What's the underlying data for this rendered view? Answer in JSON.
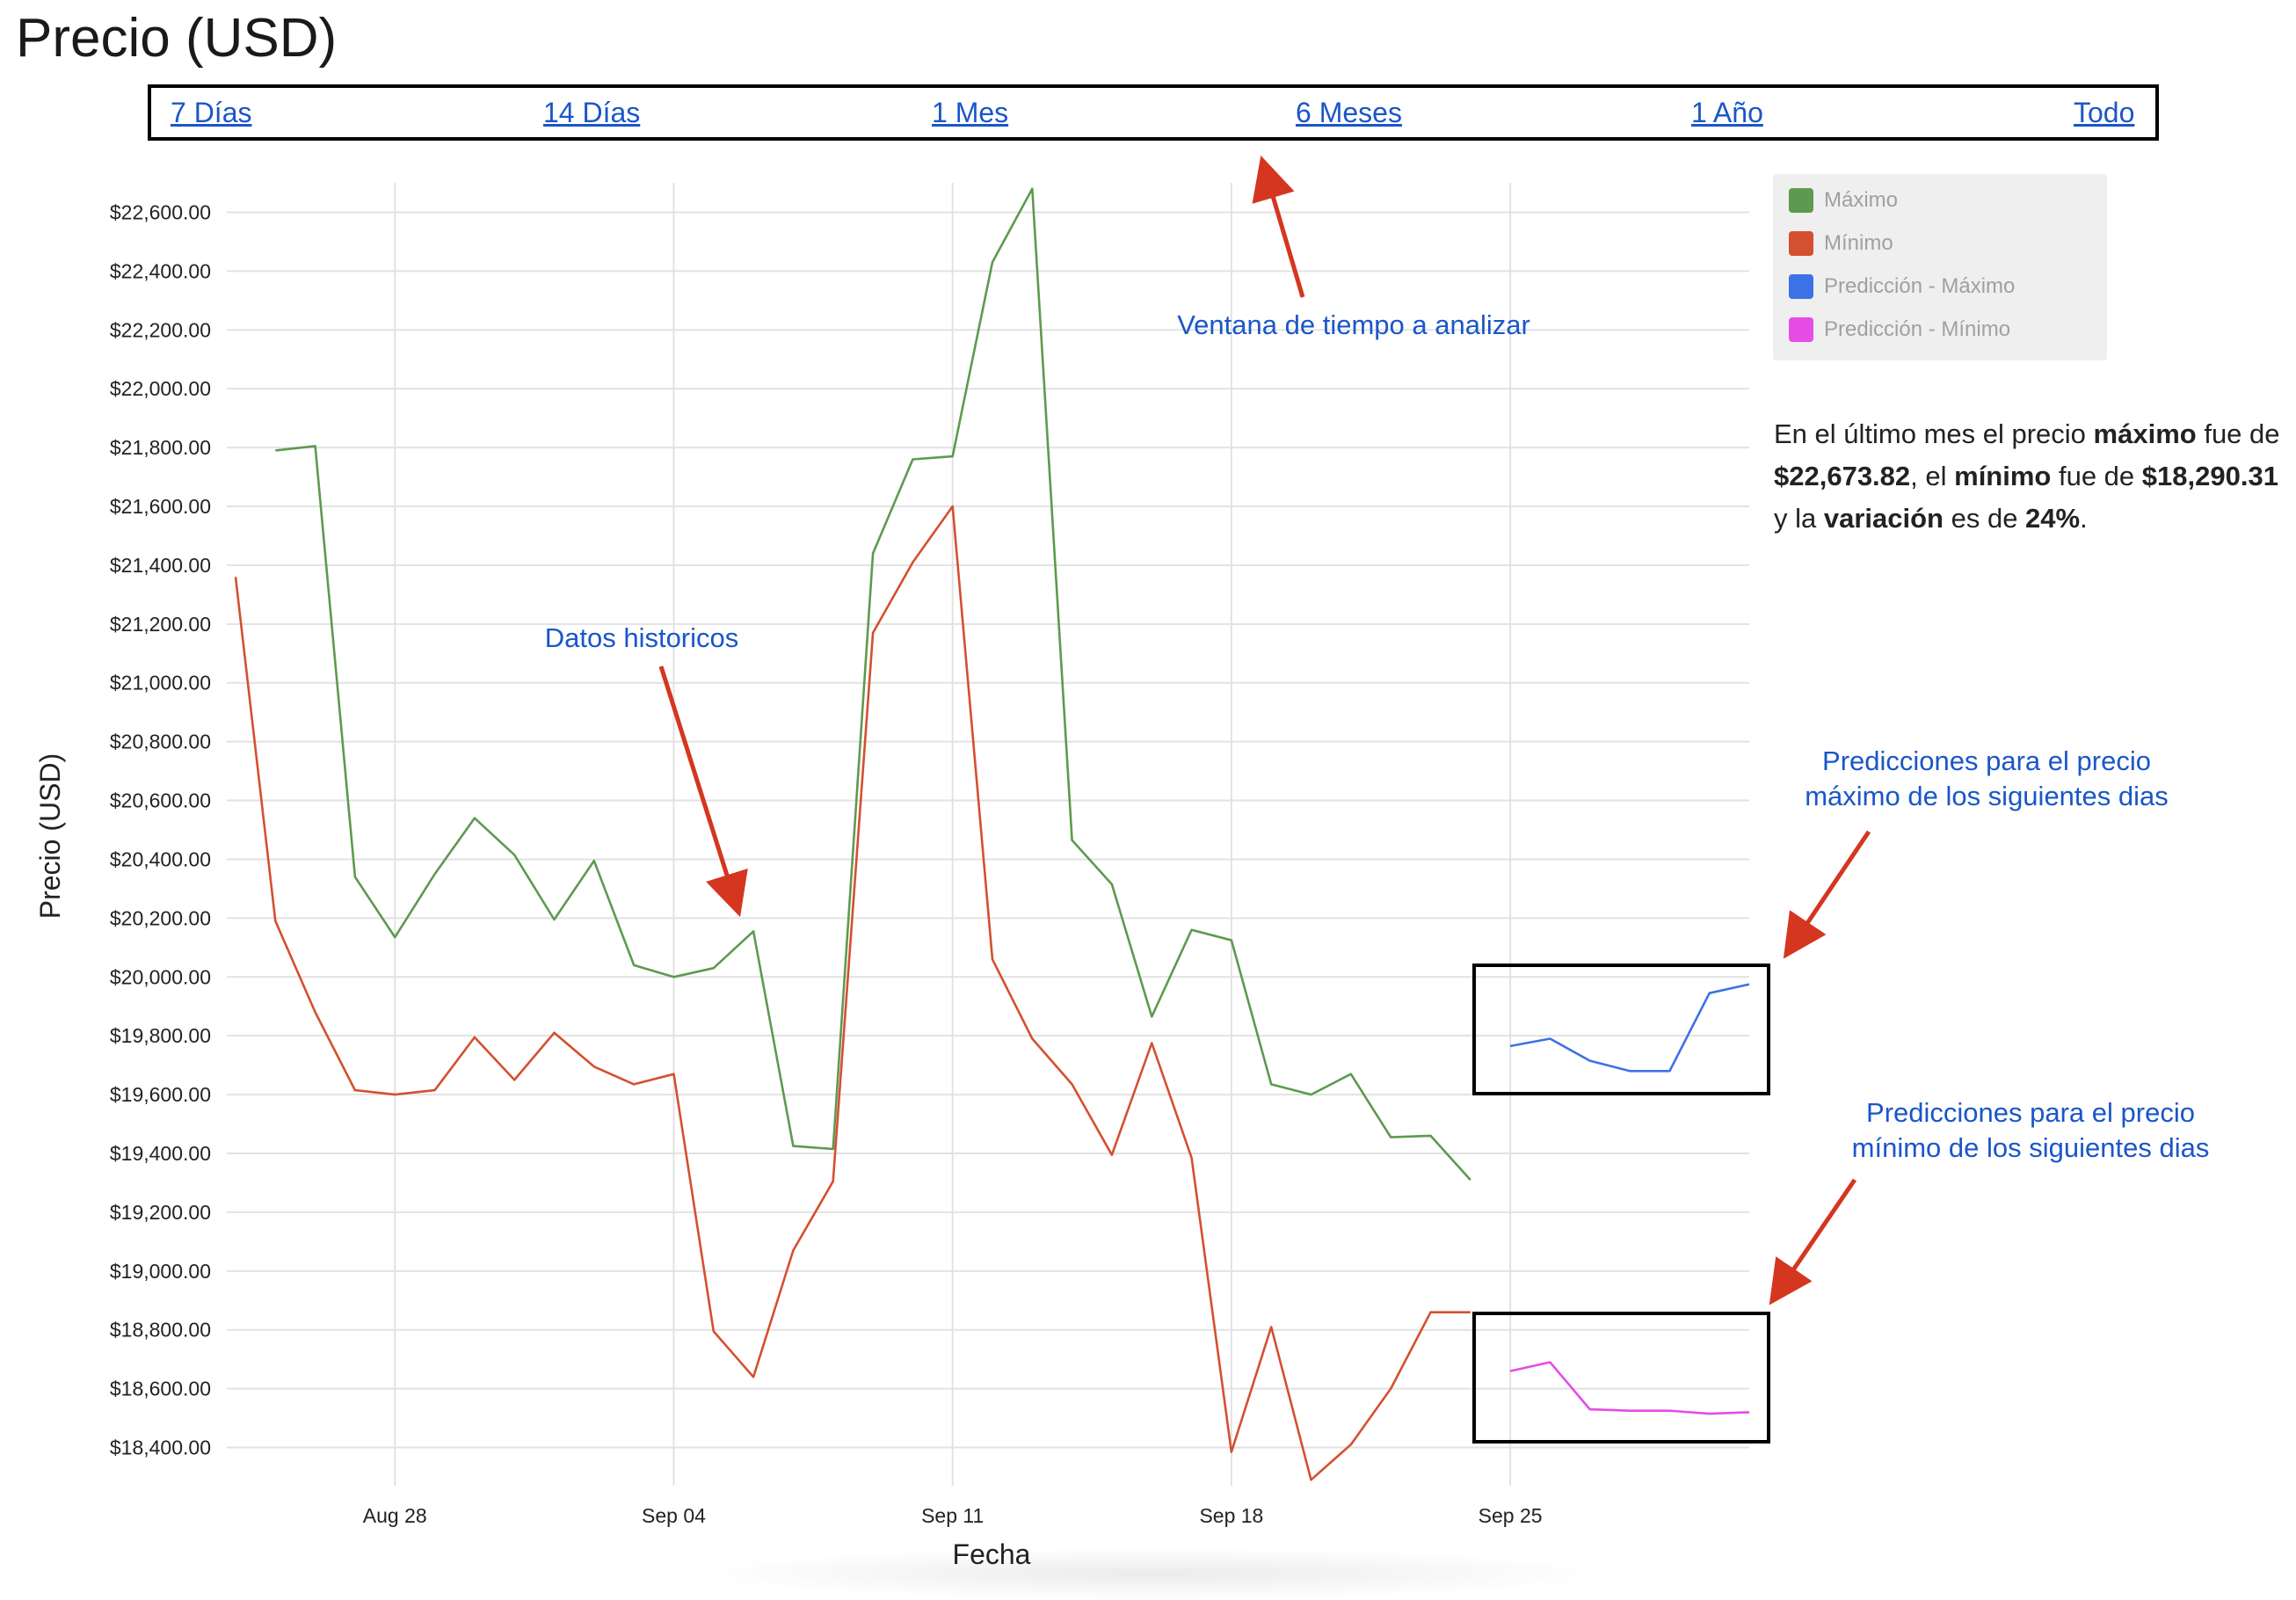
{
  "page": {
    "title": "Precio (USD)"
  },
  "range_selector": {
    "options": [
      "7 Días",
      "14 Días",
      "1 Mes",
      "6 Meses",
      "1 Año",
      "Todo"
    ]
  },
  "legend": [
    {
      "label": "Máximo",
      "color": "#5d9a4f"
    },
    {
      "label": "Mínimo",
      "color": "#d4502f"
    },
    {
      "label": "Predicción - Máximo",
      "color": "#3d72e6"
    },
    {
      "label": "Predicción - Mínimo",
      "color": "#e64ce6"
    }
  ],
  "summary": {
    "p1": "En el último mes el precio ",
    "b1": "máximo",
    "p2": " fue de ",
    "b2": "$22,673.82",
    "p3": ", el ",
    "b3": "mínimo",
    "p4": " fue de ",
    "b4": "$18,290.31",
    "p5": " y la ",
    "b5": "variación",
    "p6": " es de ",
    "b6": "24%",
    "p7": "."
  },
  "annotations": {
    "time_window": "Ventana de tiempo a analizar",
    "historical": "Datos historicos",
    "pred_max_line1": "Predicciones para el precio",
    "pred_max_line2": "máximo de los siguientes dias",
    "pred_min_line1": "Predicciones para el precio",
    "pred_min_line2": "mínimo de los siguientes dias"
  },
  "chart_data": {
    "type": "line",
    "xlabel": "Fecha",
    "ylabel": "Precio (USD)",
    "x_ticks": [
      "Aug 28",
      "Sep 04",
      "Sep 11",
      "Sep 18",
      "Sep 25"
    ],
    "x_tick_dates": [
      "2022-08-28",
      "2022-09-04",
      "2022-09-11",
      "2022-09-18",
      "2022-09-25"
    ],
    "y_ticks": [
      "$18,400.00",
      "$18,600.00",
      "$18,800.00",
      "$19,000.00",
      "$19,200.00",
      "$19,400.00",
      "$19,600.00",
      "$19,800.00",
      "$20,000.00",
      "$20,200.00",
      "$20,400.00",
      "$20,600.00",
      "$20,800.00",
      "$21,000.00",
      "$21,200.00",
      "$21,400.00",
      "$21,600.00",
      "$21,800.00",
      "$22,000.00",
      "$22,200.00",
      "$22,400.00",
      "$22,600.00"
    ],
    "ylim": [
      18300,
      22700
    ],
    "xlim": [
      "2022-08-24",
      "2022-10-01"
    ],
    "grid": true,
    "legend_position": "top-right",
    "series": [
      {
        "name": "Máximo",
        "color": "#5d9a4f",
        "x": [
          "2022-08-25",
          "2022-08-26",
          "2022-08-27",
          "2022-08-28",
          "2022-08-29",
          "2022-08-30",
          "2022-08-31",
          "2022-09-01",
          "2022-09-02",
          "2022-09-03",
          "2022-09-04",
          "2022-09-05",
          "2022-09-06",
          "2022-09-07",
          "2022-09-08",
          "2022-09-09",
          "2022-09-10",
          "2022-09-11",
          "2022-09-12",
          "2022-09-13",
          "2022-09-14",
          "2022-09-15",
          "2022-09-16",
          "2022-09-17",
          "2022-09-18",
          "2022-09-19",
          "2022-09-20",
          "2022-09-21",
          "2022-09-22",
          "2022-09-23",
          "2022-09-24"
        ],
        "values": [
          21790,
          21805,
          20340,
          20135,
          20350,
          20540,
          20415,
          20195,
          20395,
          20040,
          20000,
          20030,
          20155,
          19425,
          19415,
          21440,
          21760,
          21770,
          22430,
          22680,
          20465,
          20315,
          19865,
          20160,
          20125,
          19635,
          19600,
          19670,
          19455,
          19460,
          19310
        ]
      },
      {
        "name": "Mínimo",
        "color": "#d4502f",
        "x": [
          "2022-08-24",
          "2022-08-25",
          "2022-08-26",
          "2022-08-27",
          "2022-08-28",
          "2022-08-29",
          "2022-08-30",
          "2022-08-31",
          "2022-09-01",
          "2022-09-02",
          "2022-09-03",
          "2022-09-04",
          "2022-09-05",
          "2022-09-06",
          "2022-09-07",
          "2022-09-08",
          "2022-09-09",
          "2022-09-10",
          "2022-09-11",
          "2022-09-12",
          "2022-09-13",
          "2022-09-14",
          "2022-09-15",
          "2022-09-16",
          "2022-09-17",
          "2022-09-18",
          "2022-09-19",
          "2022-09-20",
          "2022-09-21",
          "2022-09-22",
          "2022-09-23",
          "2022-09-24"
        ],
        "values": [
          21360,
          20190,
          19880,
          19615,
          19600,
          19615,
          19795,
          19650,
          19810,
          19695,
          19635,
          19670,
          18795,
          18640,
          19070,
          19305,
          21170,
          21410,
          21600,
          20060,
          19790,
          19635,
          19395,
          19775,
          19385,
          18385,
          18810,
          18290,
          18410,
          18600,
          18860,
          18860
        ]
      },
      {
        "name": "Predicción - Máximo",
        "color": "#3d72e6",
        "x": [
          "2022-09-25",
          "2022-09-26",
          "2022-09-27",
          "2022-09-28",
          "2022-09-29",
          "2022-09-30",
          "2022-10-01"
        ],
        "values": [
          19765,
          19790,
          19715,
          19680,
          19680,
          19945,
          19975
        ]
      },
      {
        "name": "Predicción - Mínimo",
        "color": "#e64ce6",
        "x": [
          "2022-09-25",
          "2022-09-26",
          "2022-09-27",
          "2022-09-28",
          "2022-09-29",
          "2022-09-30",
          "2022-10-01"
        ],
        "values": [
          18660,
          18690,
          18530,
          18525,
          18525,
          18515,
          18520
        ]
      }
    ]
  }
}
